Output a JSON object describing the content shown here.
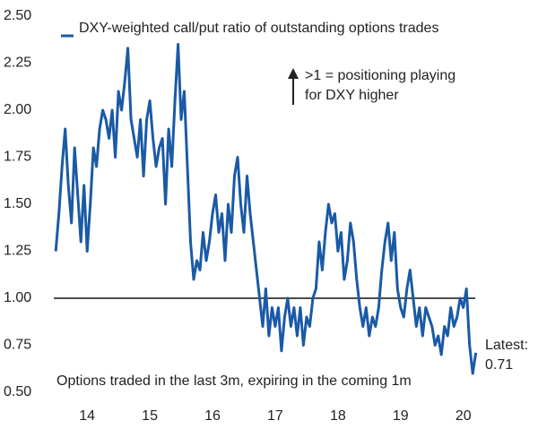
{
  "chart_data": {
    "type": "line",
    "legend_text": "DXY-weighted call/put ratio of outstanding options trades",
    "annotation": ">1 = positioning playing for DXY higher",
    "note": "Options traded in the last 3m, expiring in the coming 1m",
    "latest_label": "Latest:",
    "reference_line": 1.0,
    "x": [
      13.5,
      13.55,
      13.6,
      13.65,
      13.7,
      13.75,
      13.8,
      13.85,
      13.9,
      13.95,
      14.0,
      14.05,
      14.1,
      14.15,
      14.2,
      14.25,
      14.3,
      14.35,
      14.4,
      14.45,
      14.5,
      14.55,
      14.6,
      14.65,
      14.7,
      14.75,
      14.8,
      14.85,
      14.9,
      14.95,
      15.0,
      15.05,
      15.1,
      15.15,
      15.2,
      15.25,
      15.3,
      15.35,
      15.4,
      15.45,
      15.5,
      15.55,
      15.6,
      15.65,
      15.7,
      15.75,
      15.8,
      15.85,
      15.9,
      15.95,
      16.0,
      16.05,
      16.1,
      16.15,
      16.2,
      16.25,
      16.3,
      16.35,
      16.4,
      16.45,
      16.5,
      16.55,
      16.6,
      16.65,
      16.7,
      16.75,
      16.8,
      16.85,
      16.9,
      16.95,
      17.0,
      17.05,
      17.1,
      17.15,
      17.2,
      17.25,
      17.3,
      17.35,
      17.4,
      17.45,
      17.5,
      17.55,
      17.6,
      17.65,
      17.7,
      17.75,
      17.8,
      17.85,
      17.9,
      17.95,
      18.0,
      18.05,
      18.1,
      18.15,
      18.2,
      18.25,
      18.3,
      18.35,
      18.4,
      18.45,
      18.5,
      18.55,
      18.6,
      18.65,
      18.7,
      18.75,
      18.8,
      18.85,
      18.9,
      18.95,
      19.0,
      19.05,
      19.1,
      19.15,
      19.2,
      19.25,
      19.3,
      19.35,
      19.4,
      19.45,
      19.5,
      19.55,
      19.6,
      19.65,
      19.7,
      19.75,
      19.8,
      19.85,
      19.9,
      19.95,
      20.0,
      20.05,
      20.1,
      20.15,
      20.2
    ],
    "series": [
      {
        "color": "#1a5aa6",
        "values": [
          1.25,
          1.45,
          1.7,
          1.9,
          1.6,
          1.4,
          1.8,
          1.55,
          1.3,
          1.6,
          1.25,
          1.5,
          1.8,
          1.7,
          1.9,
          2.0,
          1.95,
          1.85,
          2.0,
          1.75,
          2.1,
          2.0,
          2.15,
          2.33,
          1.95,
          1.85,
          1.75,
          1.95,
          1.65,
          1.95,
          2.05,
          1.85,
          1.7,
          1.8,
          1.85,
          1.5,
          1.9,
          1.7,
          2.05,
          2.35,
          1.95,
          2.1,
          1.7,
          1.3,
          1.1,
          1.2,
          1.15,
          1.35,
          1.2,
          1.3,
          1.45,
          1.55,
          1.35,
          1.45,
          1.2,
          1.5,
          1.35,
          1.65,
          1.75,
          1.5,
          1.35,
          1.65,
          1.45,
          1.3,
          1.15,
          1.0,
          0.85,
          1.05,
          0.8,
          0.95,
          0.85,
          0.95,
          0.72,
          0.9,
          1.0,
          0.85,
          0.95,
          0.8,
          0.95,
          0.75,
          0.9,
          0.85,
          1.0,
          1.05,
          1.3,
          1.15,
          1.35,
          1.5,
          1.4,
          1.45,
          1.25,
          1.35,
          1.1,
          1.2,
          1.4,
          1.3,
          1.1,
          0.95,
          0.85,
          0.95,
          0.8,
          0.9,
          0.85,
          0.95,
          1.15,
          1.3,
          1.4,
          1.2,
          1.35,
          1.05,
          0.95,
          0.9,
          1.05,
          1.15,
          1.0,
          0.85,
          0.95,
          0.8,
          0.95,
          0.9,
          0.85,
          0.75,
          0.8,
          0.7,
          0.85,
          0.8,
          0.95,
          0.85,
          0.9,
          1.0,
          0.95,
          1.05,
          0.75,
          0.6,
          0.71
        ]
      }
    ],
    "xlim": [
      13.44,
      20.19
    ],
    "xticks": [
      14,
      15,
      16,
      17,
      18,
      19,
      20
    ],
    "ylim": [
      0.5,
      2.5
    ],
    "yticks": [
      {
        "value": 0.5,
        "label": "0.50"
      },
      {
        "value": 0.75,
        "label": "0.75"
      },
      {
        "value": 1.0,
        "label": "1.00"
      },
      {
        "value": 1.25,
        "label": "1.25"
      },
      {
        "value": 1.5,
        "label": "1.50"
      },
      {
        "value": 1.75,
        "label": "1.75"
      },
      {
        "value": 2.0,
        "label": "2.00"
      },
      {
        "value": 2.25,
        "label": "2.25"
      },
      {
        "value": 2.5,
        "label": "2.50"
      }
    ],
    "grid": false
  }
}
